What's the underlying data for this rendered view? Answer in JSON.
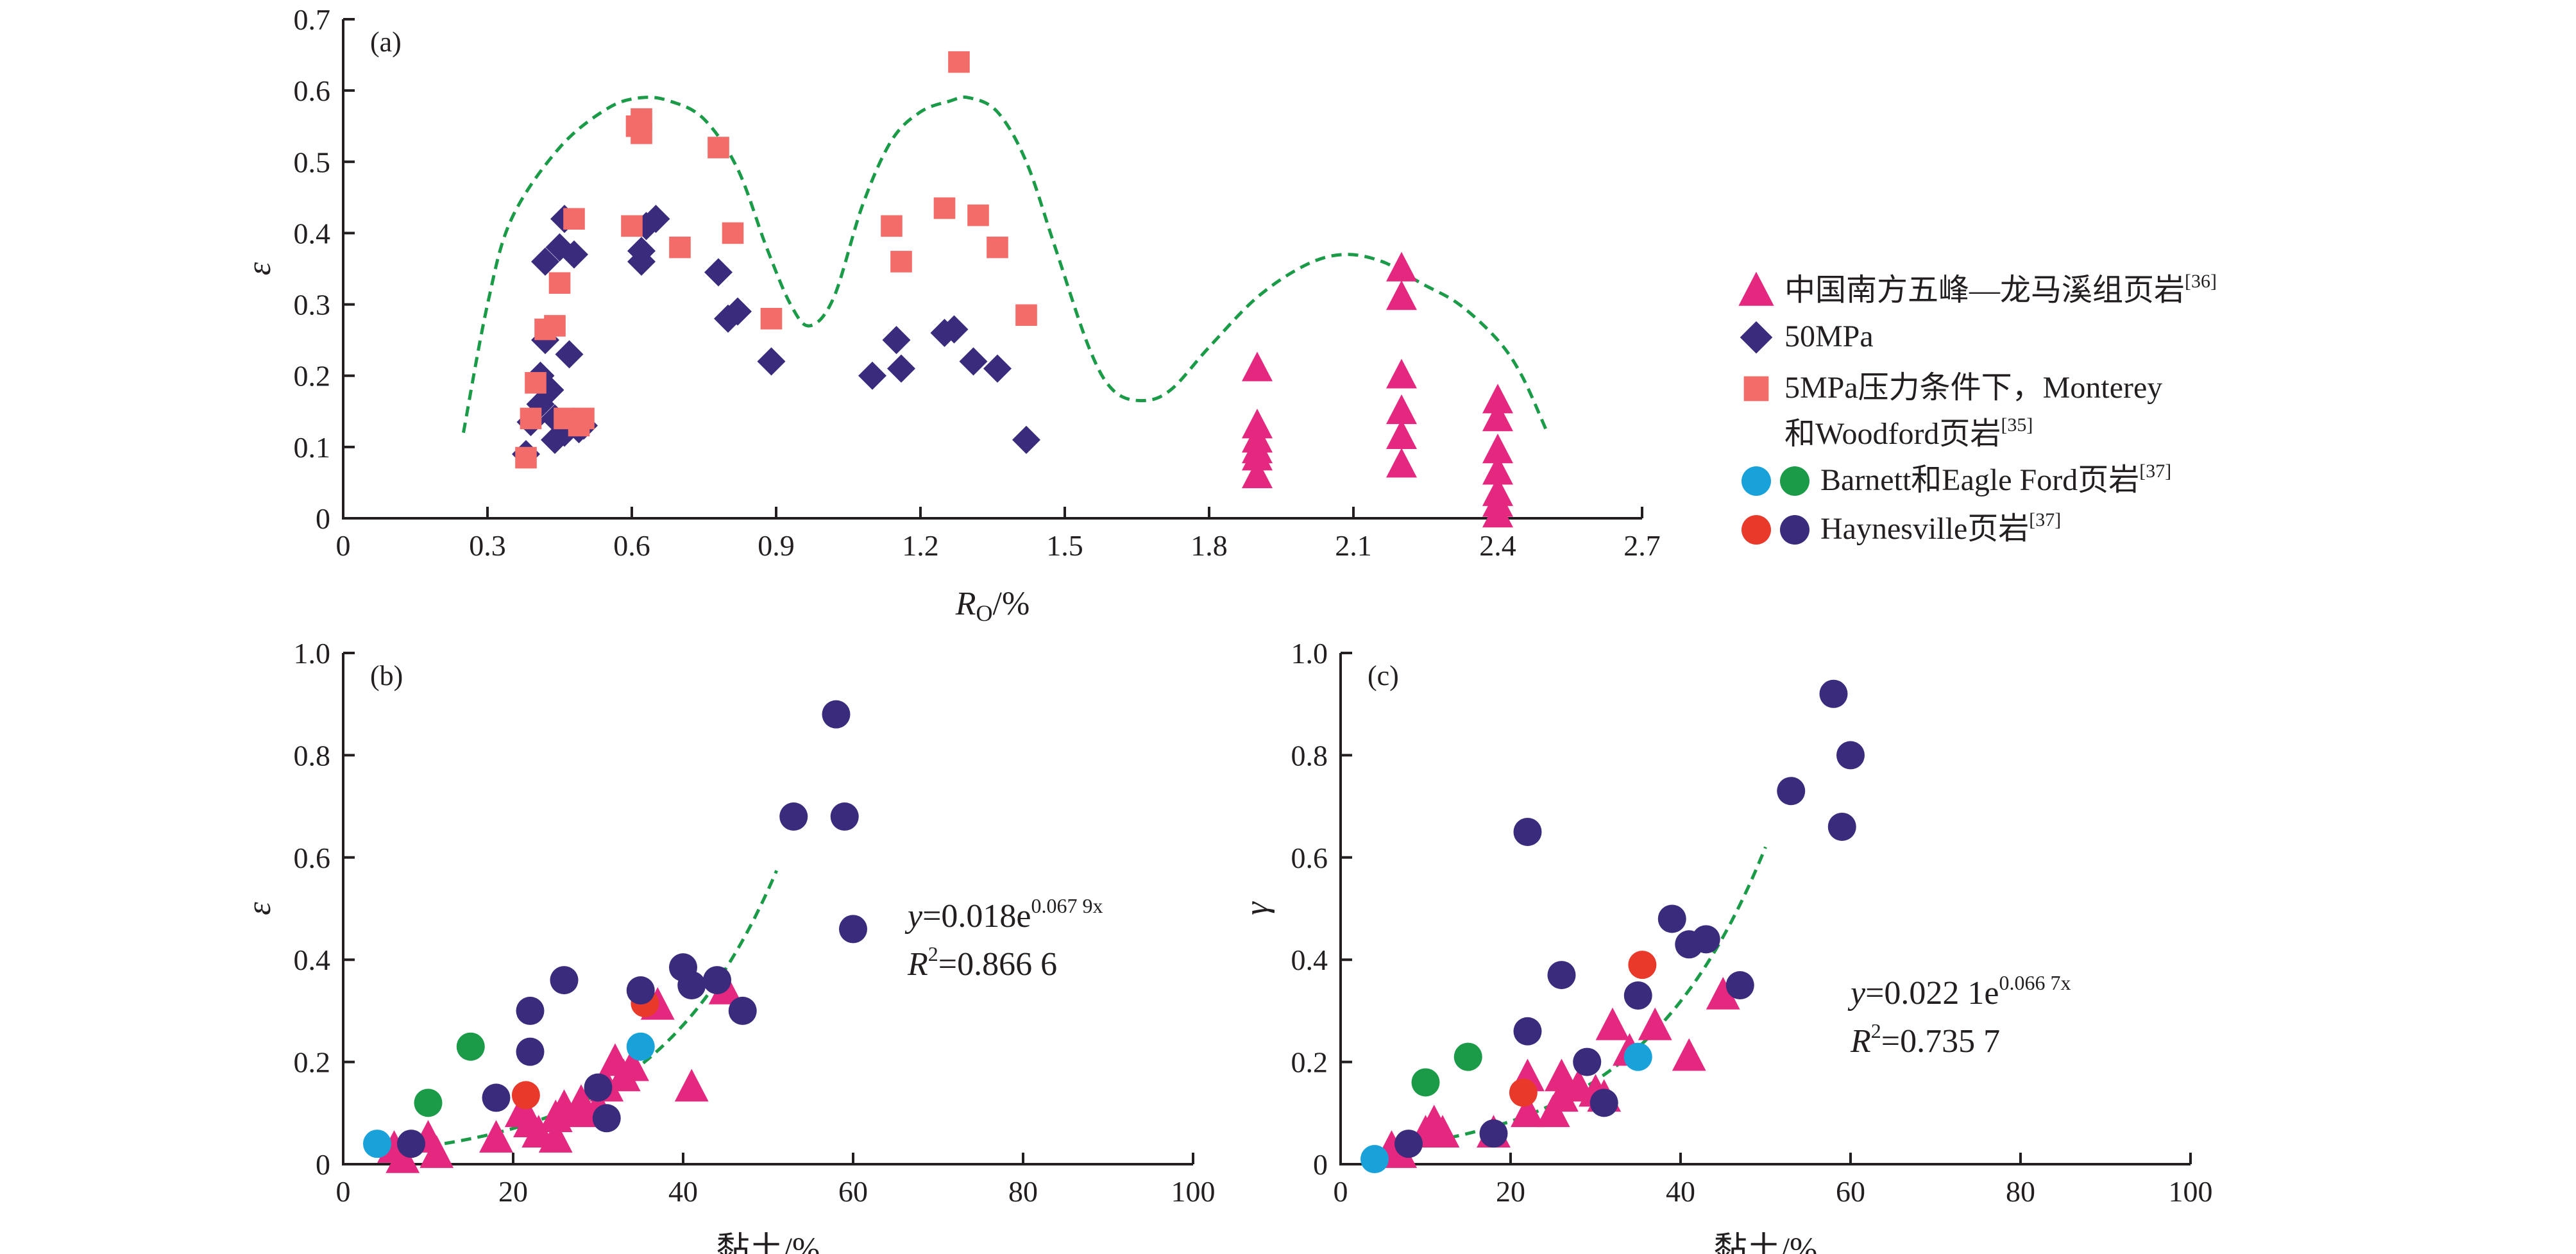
{
  "colors": {
    "triangle": "#e5287f",
    "diamond": "#3b2b7c",
    "square": "#f26d6a",
    "blue": "#19a2da",
    "green": "#1b9a48",
    "red": "#e8392b",
    "purple": "#3b2b7c",
    "curve": "#1b9a48"
  },
  "legend": {
    "items": [
      {
        "id": "wufeng",
        "label": "中国南方五峰—龙马溪组页岩",
        "ref": "[36]",
        "markers": [
          "triangle"
        ]
      },
      {
        "id": "mpa50",
        "label": "50MPa",
        "ref": "",
        "markers": [
          "diamond"
        ]
      },
      {
        "id": "monterey_line1",
        "label": "5MPa压力条件下，Monterey",
        "ref": "",
        "markers": [
          "square"
        ]
      },
      {
        "id": "monterey_line2",
        "label": "和Woodford页岩",
        "ref": "[35]",
        "markers": []
      },
      {
        "id": "barnett",
        "label": "Barnett和Eagle Ford页岩",
        "ref": "[37]",
        "markers": [
          "blue",
          "green"
        ]
      },
      {
        "id": "haynesville",
        "label": "Haynesville页岩",
        "ref": "[37]",
        "markers": [
          "red",
          "purple"
        ]
      }
    ]
  },
  "chart_data": [
    {
      "panel": "(a)",
      "type": "scatter",
      "ylabel": "ε",
      "xlabel_main": "R",
      "xlabel_sub": "O",
      "xlabel_tail": "/%",
      "xlim": [
        0,
        2.7
      ],
      "ylim": [
        0,
        0.7
      ],
      "xticks": [
        "0",
        "0.3",
        "0.6",
        "0.9",
        "1.2",
        "1.5",
        "1.8",
        "2.1",
        "2.4",
        "2.7"
      ],
      "yticks": [
        "0",
        "0.1",
        "0.2",
        "0.3",
        "0.4",
        "0.5",
        "0.6",
        "0.7"
      ],
      "series": [
        {
          "name": "中国南方五峰—龙马溪组页岩",
          "marker": "triangle",
          "points": [
            [
              1.9,
              0.21
            ],
            [
              1.9,
              0.13
            ],
            [
              1.9,
              0.11
            ],
            [
              1.9,
              0.095
            ],
            [
              1.9,
              0.085
            ],
            [
              1.9,
              0.06
            ],
            [
              2.2,
              0.35
            ],
            [
              2.2,
              0.31
            ],
            [
              2.2,
              0.2
            ],
            [
              2.2,
              0.15
            ],
            [
              2.2,
              0.115
            ],
            [
              2.2,
              0.075
            ],
            [
              2.4,
              0.165
            ],
            [
              2.4,
              0.14
            ],
            [
              2.4,
              0.095
            ],
            [
              2.4,
              0.065
            ],
            [
              2.4,
              0.035
            ],
            [
              2.4,
              0.02
            ],
            [
              2.4,
              0.005
            ]
          ]
        },
        {
          "name": "50MPa",
          "marker": "diamond",
          "points": [
            [
              0.38,
              0.09
            ],
            [
              0.39,
              0.135
            ],
            [
              0.41,
              0.16
            ],
            [
              0.41,
              0.2
            ],
            [
              0.42,
              0.25
            ],
            [
              0.42,
              0.36
            ],
            [
              0.43,
              0.18
            ],
            [
              0.44,
              0.11
            ],
            [
              0.44,
              0.14
            ],
            [
              0.45,
              0.38
            ],
            [
              0.46,
              0.42
            ],
            [
              0.46,
              0.12
            ],
            [
              0.47,
              0.23
            ],
            [
              0.48,
              0.37
            ],
            [
              0.49,
              0.125
            ],
            [
              0.5,
              0.13
            ],
            [
              0.62,
              0.36
            ],
            [
              0.62,
              0.375
            ],
            [
              0.63,
              0.41
            ],
            [
              0.65,
              0.42
            ],
            [
              0.78,
              0.345
            ],
            [
              0.8,
              0.28
            ],
            [
              0.82,
              0.29
            ],
            [
              0.89,
              0.22
            ],
            [
              1.1,
              0.2
            ],
            [
              1.15,
              0.25
            ],
            [
              1.16,
              0.21
            ],
            [
              1.25,
              0.26
            ],
            [
              1.27,
              0.265
            ],
            [
              1.31,
              0.22
            ],
            [
              1.36,
              0.21
            ],
            [
              1.42,
              0.11
            ]
          ]
        },
        {
          "name": "5MPa压力条件下，Monterey和Woodford页岩",
          "marker": "square",
          "points": [
            [
              0.38,
              0.085
            ],
            [
              0.39,
              0.14
            ],
            [
              0.4,
              0.19
            ],
            [
              0.42,
              0.265
            ],
            [
              0.44,
              0.27
            ],
            [
              0.45,
              0.33
            ],
            [
              0.46,
              0.14
            ],
            [
              0.48,
              0.42
            ],
            [
              0.49,
              0.13
            ],
            [
              0.5,
              0.14
            ],
            [
              0.6,
              0.41
            ],
            [
              0.61,
              0.55
            ],
            [
              0.62,
              0.54
            ],
            [
              0.62,
              0.56
            ],
            [
              0.7,
              0.38
            ],
            [
              0.78,
              0.52
            ],
            [
              0.81,
              0.4
            ],
            [
              0.89,
              0.28
            ],
            [
              1.14,
              0.41
            ],
            [
              1.16,
              0.36
            ],
            [
              1.25,
              0.435
            ],
            [
              1.28,
              0.64
            ],
            [
              1.32,
              0.425
            ],
            [
              1.36,
              0.38
            ],
            [
              1.42,
              0.285
            ]
          ]
        }
      ],
      "trend": {
        "style": "dashed",
        "x": [
          0.25,
          0.3,
          0.35,
          0.45,
          0.55,
          0.62,
          0.68,
          0.75,
          0.82,
          0.88,
          0.93,
          0.97,
          1.02,
          1.08,
          1.14,
          1.2,
          1.26,
          1.3,
          1.36,
          1.42,
          1.48,
          1.55,
          1.6,
          1.66,
          1.72,
          1.8,
          1.9,
          2.0,
          2.08,
          2.16,
          2.24,
          2.32,
          2.4,
          2.45,
          2.5
        ],
        "y": [
          0.12,
          0.3,
          0.42,
          0.52,
          0.575,
          0.59,
          0.585,
          0.56,
          0.49,
          0.38,
          0.3,
          0.27,
          0.31,
          0.44,
          0.53,
          0.57,
          0.585,
          0.59,
          0.57,
          0.5,
          0.38,
          0.24,
          0.18,
          0.165,
          0.18,
          0.24,
          0.31,
          0.355,
          0.37,
          0.36,
          0.33,
          0.3,
          0.25,
          0.2,
          0.125
        ]
      }
    },
    {
      "panel": "(b)",
      "type": "scatter",
      "ylabel": "ε",
      "xlabel": "黏土/%",
      "xlim": [
        0,
        100
      ],
      "ylim": [
        0,
        1.0
      ],
      "xticks": [
        "0",
        "20",
        "40",
        "60",
        "80",
        "100"
      ],
      "yticks": [
        "0",
        "0.2",
        "0.4",
        "0.6",
        "0.8",
        "1.0"
      ],
      "series": [
        {
          "marker": "triangle",
          "points": [
            [
              6,
              0.03
            ],
            [
              7,
              0.01
            ],
            [
              10,
              0.05
            ],
            [
              11,
              0.02
            ],
            [
              18,
              0.05
            ],
            [
              21,
              0.1
            ],
            [
              22,
              0.08
            ],
            [
              23,
              0.06
            ],
            [
              25,
              0.05
            ],
            [
              25,
              0.09
            ],
            [
              26,
              0.11
            ],
            [
              28,
              0.12
            ],
            [
              28,
              0.1
            ],
            [
              30,
              0.11
            ],
            [
              31,
              0.15
            ],
            [
              32,
              0.2
            ],
            [
              33,
              0.17
            ],
            [
              34,
              0.19
            ],
            [
              37,
              0.31
            ],
            [
              41,
              0.15
            ],
            [
              45,
              0.34
            ]
          ]
        },
        {
          "marker": "blue",
          "points": [
            [
              4,
              0.04
            ],
            [
              35,
              0.23
            ]
          ]
        },
        {
          "marker": "green",
          "points": [
            [
              10,
              0.12
            ],
            [
              15,
              0.23
            ]
          ]
        },
        {
          "marker": "red",
          "points": [
            [
              21.5,
              0.135
            ],
            [
              35.5,
              0.315
            ]
          ]
        },
        {
          "marker": "purple",
          "points": [
            [
              8,
              0.04
            ],
            [
              18,
              0.13
            ],
            [
              22,
              0.3
            ],
            [
              22,
              0.22
            ],
            [
              26,
              0.36
            ],
            [
              30,
              0.15
            ],
            [
              31,
              0.09
            ],
            [
              35,
              0.34
            ],
            [
              40,
              0.385
            ],
            [
              41,
              0.35
            ],
            [
              44,
              0.36
            ],
            [
              47,
              0.3
            ],
            [
              53,
              0.68
            ],
            [
              58,
              0.88
            ],
            [
              59,
              0.68
            ],
            [
              60,
              0.46
            ]
          ]
        }
      ],
      "trend": {
        "style": "dashed",
        "a": 0.018,
        "b": 0.0679,
        "xrange": [
          10,
          51
        ]
      },
      "equation": {
        "y": "y",
        "eq": "=0.018e",
        "exp": "0.067 9x",
        "r": "R",
        "r2": "2",
        "rval": "=0.866 6"
      }
    },
    {
      "panel": "(c)",
      "type": "scatter",
      "ylabel": "γ",
      "xlabel": "黏土/%",
      "xlim": [
        0,
        100
      ],
      "ylim": [
        0,
        1.0
      ],
      "xticks": [
        "0",
        "20",
        "40",
        "60",
        "80",
        "100"
      ],
      "yticks": [
        "0",
        "0.2",
        "0.4",
        "0.6",
        "0.8",
        "1.0"
      ],
      "series": [
        {
          "marker": "triangle",
          "points": [
            [
              6,
              0.03
            ],
            [
              7,
              0.02
            ],
            [
              10,
              0.06
            ],
            [
              11,
              0.08
            ],
            [
              12,
              0.06
            ],
            [
              18,
              0.06
            ],
            [
              22,
              0.17
            ],
            [
              22,
              0.1
            ],
            [
              25,
              0.1
            ],
            [
              26,
              0.13
            ],
            [
              26,
              0.17
            ],
            [
              28,
              0.15
            ],
            [
              30,
              0.14
            ],
            [
              31,
              0.13
            ],
            [
              32,
              0.27
            ],
            [
              34,
              0.22
            ],
            [
              37,
              0.27
            ],
            [
              41,
              0.21
            ],
            [
              45,
              0.33
            ]
          ]
        },
        {
          "marker": "blue",
          "points": [
            [
              4,
              0.01
            ],
            [
              35,
              0.21
            ]
          ]
        },
        {
          "marker": "green",
          "points": [
            [
              10,
              0.16
            ],
            [
              15,
              0.21
            ]
          ]
        },
        {
          "marker": "red",
          "points": [
            [
              21.5,
              0.14
            ],
            [
              35.5,
              0.39
            ]
          ]
        },
        {
          "marker": "purple",
          "points": [
            [
              8,
              0.04
            ],
            [
              18,
              0.06
            ],
            [
              22,
              0.65
            ],
            [
              22,
              0.26
            ],
            [
              26,
              0.37
            ],
            [
              29,
              0.2
            ],
            [
              31,
              0.12
            ],
            [
              35,
              0.33
            ],
            [
              39,
              0.48
            ],
            [
              41,
              0.43
            ],
            [
              43,
              0.44
            ],
            [
              47,
              0.35
            ],
            [
              53,
              0.73
            ],
            [
              58,
              0.92
            ],
            [
              59,
              0.66
            ],
            [
              60,
              0.8
            ]
          ]
        }
      ],
      "trend": {
        "style": "dashed",
        "a": 0.0221,
        "b": 0.0667,
        "xrange": [
          5,
          50
        ]
      },
      "equation": {
        "y": "y",
        "eq": "=0.022 1e",
        "exp": "0.066 7x",
        "r": "R",
        "r2": "2",
        "rval": "=0.735 7"
      }
    }
  ]
}
